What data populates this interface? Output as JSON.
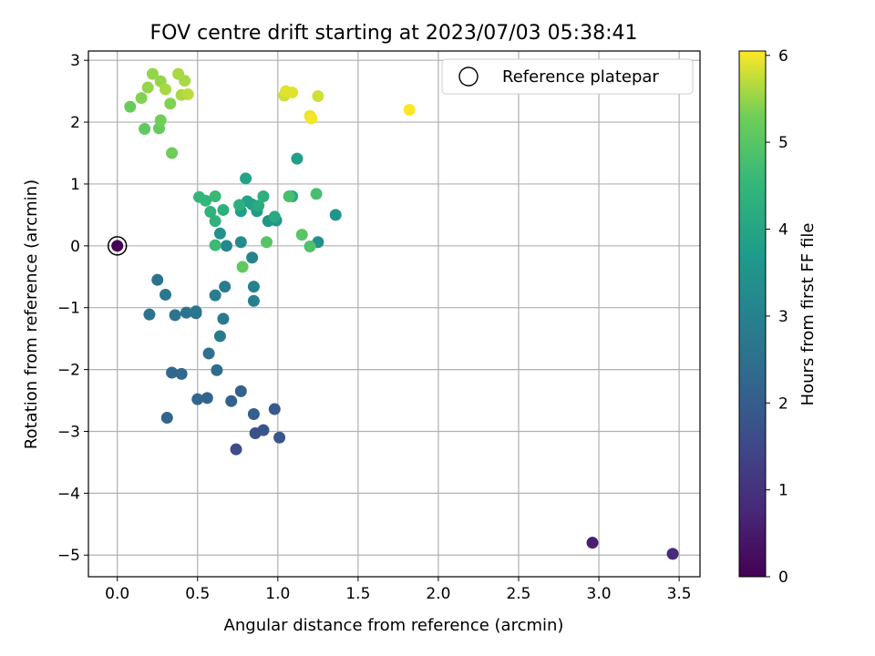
{
  "chart_data": {
    "type": "scatter",
    "title": "FOV centre drift starting at 2023/07/03 05:38:41",
    "xlabel": "Angular distance from reference (arcmin)",
    "ylabel": "Rotation from reference (arcmin)",
    "xlim": [
      -0.18,
      3.63
    ],
    "ylim": [
      -5.35,
      3.15
    ],
    "xticks": [
      0.0,
      0.5,
      1.0,
      1.5,
      2.0,
      2.5,
      3.0,
      3.5
    ],
    "xtick_labels": [
      "0.0",
      "0.5",
      "1.0",
      "1.5",
      "2.0",
      "2.5",
      "3.0",
      "3.5"
    ],
    "yticks": [
      3,
      2,
      1,
      0,
      -1,
      -2,
      -3,
      -4,
      -5
    ],
    "ytick_labels": [
      "3",
      "2",
      "1",
      "0",
      "−1",
      "−2",
      "−3",
      "−4",
      "−5"
    ],
    "grid": true,
    "legend": {
      "position": "top-right",
      "label": "Reference platepar",
      "marker": "open-circle"
    },
    "reference_point": {
      "x": 0.0,
      "y": 0.0
    },
    "colorbar": {
      "label": "Hours from first FF file",
      "range": [
        0,
        6.05
      ],
      "ticks": [
        0,
        1,
        2,
        3,
        4,
        5,
        6
      ],
      "tick_labels": [
        "0",
        "1",
        "2",
        "3",
        "4",
        "5",
        "6"
      ],
      "colormap": "viridis"
    },
    "points": [
      {
        "x": 0.0,
        "y": 0.0,
        "hours": 0.0
      },
      {
        "x": 2.96,
        "y": -4.8,
        "hours": 0.6
      },
      {
        "x": 3.46,
        "y": -4.98,
        "hours": 0.8
      },
      {
        "x": 0.74,
        "y": -3.29,
        "hours": 1.6
      },
      {
        "x": 0.86,
        "y": -3.03,
        "hours": 1.7
      },
      {
        "x": 0.91,
        "y": -2.98,
        "hours": 1.8
      },
      {
        "x": 1.01,
        "y": -3.1,
        "hours": 1.8
      },
      {
        "x": 0.98,
        "y": -2.64,
        "hours": 1.9
      },
      {
        "x": 0.85,
        "y": -2.72,
        "hours": 2.0
      },
      {
        "x": 0.77,
        "y": -2.35,
        "hours": 2.1
      },
      {
        "x": 0.71,
        "y": -2.51,
        "hours": 2.1
      },
      {
        "x": 0.56,
        "y": -2.46,
        "hours": 2.2
      },
      {
        "x": 0.5,
        "y": -2.48,
        "hours": 2.2
      },
      {
        "x": 0.31,
        "y": -2.78,
        "hours": 2.2
      },
      {
        "x": 0.34,
        "y": -2.05,
        "hours": 2.3
      },
      {
        "x": 0.4,
        "y": -2.07,
        "hours": 2.3
      },
      {
        "x": 0.62,
        "y": -2.01,
        "hours": 2.4
      },
      {
        "x": 0.57,
        "y": -1.74,
        "hours": 2.5
      },
      {
        "x": 0.2,
        "y": -1.11,
        "hours": 2.6
      },
      {
        "x": 0.36,
        "y": -1.12,
        "hours": 2.6
      },
      {
        "x": 0.43,
        "y": -1.08,
        "hours": 2.6
      },
      {
        "x": 0.49,
        "y": -1.09,
        "hours": 2.6
      },
      {
        "x": 0.49,
        "y": -1.06,
        "hours": 2.7
      },
      {
        "x": 0.25,
        "y": -0.55,
        "hours": 2.6
      },
      {
        "x": 0.3,
        "y": -0.79,
        "hours": 2.7
      },
      {
        "x": 0.64,
        "y": -1.46,
        "hours": 2.8
      },
      {
        "x": 0.66,
        "y": -1.18,
        "hours": 2.8
      },
      {
        "x": 0.61,
        "y": -0.8,
        "hours": 2.9
      },
      {
        "x": 0.67,
        "y": -0.66,
        "hours": 2.9
      },
      {
        "x": 0.85,
        "y": -0.89,
        "hours": 3.0
      },
      {
        "x": 0.85,
        "y": -0.66,
        "hours": 3.0
      },
      {
        "x": 0.84,
        "y": -0.19,
        "hours": 3.1
      },
      {
        "x": 0.68,
        "y": 0.0,
        "hours": 3.2
      },
      {
        "x": 0.77,
        "y": 0.06,
        "hours": 3.3
      },
      {
        "x": 0.64,
        "y": 0.2,
        "hours": 3.4
      },
      {
        "x": 1.25,
        "y": 0.06,
        "hours": 3.4
      },
      {
        "x": 1.36,
        "y": 0.5,
        "hours": 3.5
      },
      {
        "x": 0.94,
        "y": 0.4,
        "hours": 3.6
      },
      {
        "x": 0.99,
        "y": 0.41,
        "hours": 3.6
      },
      {
        "x": 0.87,
        "y": 0.56,
        "hours": 3.7
      },
      {
        "x": 0.77,
        "y": 0.56,
        "hours": 3.8
      },
      {
        "x": 0.84,
        "y": 0.67,
        "hours": 3.9
      },
      {
        "x": 0.8,
        "y": 1.09,
        "hours": 3.9
      },
      {
        "x": 0.81,
        "y": 0.72,
        "hours": 3.9
      },
      {
        "x": 1.12,
        "y": 1.41,
        "hours": 3.8
      },
      {
        "x": 1.09,
        "y": 0.8,
        "hours": 4.1
      },
      {
        "x": 0.98,
        "y": 0.47,
        "hours": 4.1
      },
      {
        "x": 0.88,
        "y": 0.65,
        "hours": 4.2
      },
      {
        "x": 0.91,
        "y": 0.8,
        "hours": 4.3
      },
      {
        "x": 0.76,
        "y": 0.66,
        "hours": 4.3
      },
      {
        "x": 0.66,
        "y": 0.58,
        "hours": 4.3
      },
      {
        "x": 0.58,
        "y": 0.55,
        "hours": 4.4
      },
      {
        "x": 0.61,
        "y": 0.4,
        "hours": 4.4
      },
      {
        "x": 0.55,
        "y": 0.73,
        "hours": 4.5
      },
      {
        "x": 0.51,
        "y": 0.79,
        "hours": 4.5
      },
      {
        "x": 0.61,
        "y": 0.8,
        "hours": 4.6
      },
      {
        "x": 0.61,
        "y": 0.01,
        "hours": 4.6
      },
      {
        "x": 1.07,
        "y": 0.8,
        "hours": 4.8
      },
      {
        "x": 1.24,
        "y": 0.84,
        "hours": 4.8
      },
      {
        "x": 1.2,
        "y": -0.01,
        "hours": 4.9
      },
      {
        "x": 1.15,
        "y": 0.18,
        "hours": 5.0
      },
      {
        "x": 0.93,
        "y": 0.06,
        "hours": 5.0
      },
      {
        "x": 0.78,
        "y": -0.34,
        "hours": 5.1
      },
      {
        "x": 0.17,
        "y": 1.89,
        "hours": 5.1
      },
      {
        "x": 0.08,
        "y": 2.25,
        "hours": 5.2
      },
      {
        "x": 0.26,
        "y": 1.9,
        "hours": 5.2
      },
      {
        "x": 0.27,
        "y": 2.03,
        "hours": 5.3
      },
      {
        "x": 0.34,
        "y": 1.5,
        "hours": 5.3
      },
      {
        "x": 0.15,
        "y": 2.39,
        "hours": 5.4
      },
      {
        "x": 0.33,
        "y": 2.3,
        "hours": 5.4
      },
      {
        "x": 0.19,
        "y": 2.56,
        "hours": 5.5
      },
      {
        "x": 0.22,
        "y": 2.78,
        "hours": 5.5
      },
      {
        "x": 0.27,
        "y": 2.66,
        "hours": 5.5
      },
      {
        "x": 0.3,
        "y": 2.53,
        "hours": 5.6
      },
      {
        "x": 0.38,
        "y": 2.78,
        "hours": 5.6
      },
      {
        "x": 0.4,
        "y": 2.44,
        "hours": 5.6
      },
      {
        "x": 0.42,
        "y": 2.67,
        "hours": 5.6
      },
      {
        "x": 0.44,
        "y": 2.45,
        "hours": 5.7
      },
      {
        "x": 1.04,
        "y": 2.43,
        "hours": 5.8
      },
      {
        "x": 1.25,
        "y": 2.42,
        "hours": 5.8
      },
      {
        "x": 1.05,
        "y": 2.5,
        "hours": 5.9
      },
      {
        "x": 1.09,
        "y": 2.48,
        "hours": 5.9
      },
      {
        "x": 1.2,
        "y": 2.1,
        "hours": 5.95
      },
      {
        "x": 1.21,
        "y": 2.06,
        "hours": 6.0
      },
      {
        "x": 1.82,
        "y": 2.2,
        "hours": 6.05
      }
    ]
  }
}
